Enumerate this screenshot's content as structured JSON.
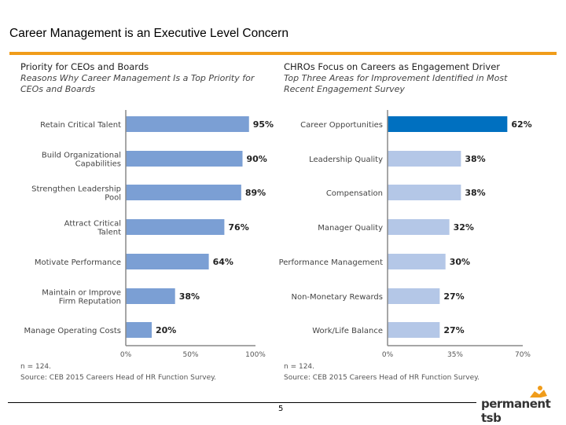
{
  "slide": {
    "title": "Career Management is an Executive Level Concern",
    "page_number": "5",
    "logo_text": "permanent tsb",
    "accent_color": "#f09c1a"
  },
  "chart_data": [
    {
      "type": "bar",
      "orientation": "horizontal",
      "title": "Priority for CEOs and Boards",
      "subtitle": "Reasons Why Career Management Is a Top Priority for CEOs and Boards",
      "categories": [
        "Retain Critical Talent",
        "Build Organizational Capabilities",
        "Strengthen Leadership Pool",
        "Attract Critical Talent",
        "Motivate Performance",
        "Maintain or Improve Firm Reputation",
        "Manage Operating Costs"
      ],
      "values": [
        95,
        90,
        89,
        76,
        64,
        38,
        20
      ],
      "labels": [
        "95%",
        "90%",
        "89%",
        "76%",
        "64%",
        "38%",
        "20%"
      ],
      "xlim": [
        0,
        100
      ],
      "xticks": [
        "0%",
        "50%",
        "100%"
      ],
      "colors": [
        "#7b9fd4"
      ],
      "note": "n = 124.",
      "source": "Source: CEB 2015 Careers Head of HR Function Survey."
    },
    {
      "type": "bar",
      "orientation": "horizontal",
      "title": "CHROs Focus on Careers as Engagement Driver",
      "subtitle": "Top Three Areas for Improvement Identified in Most Recent Engagement Survey",
      "categories": [
        "Career Opportunities",
        "Leadership Quality",
        "Compensation",
        "Manager Quality",
        "Performance Management",
        "Non-Monetary Rewards",
        "Work/Life Balance"
      ],
      "values": [
        62,
        38,
        38,
        32,
        30,
        27,
        27
      ],
      "labels": [
        "62%",
        "38%",
        "38%",
        "32%",
        "30%",
        "27%",
        "27%"
      ],
      "xlim": [
        0,
        70
      ],
      "xticks": [
        "0%",
        "35%",
        "70%"
      ],
      "colors": [
        "#0070c0",
        "#b4c7e7"
      ],
      "note": "n = 124.",
      "source": "Source: CEB 2015 Careers Head of HR Function Survey."
    }
  ]
}
